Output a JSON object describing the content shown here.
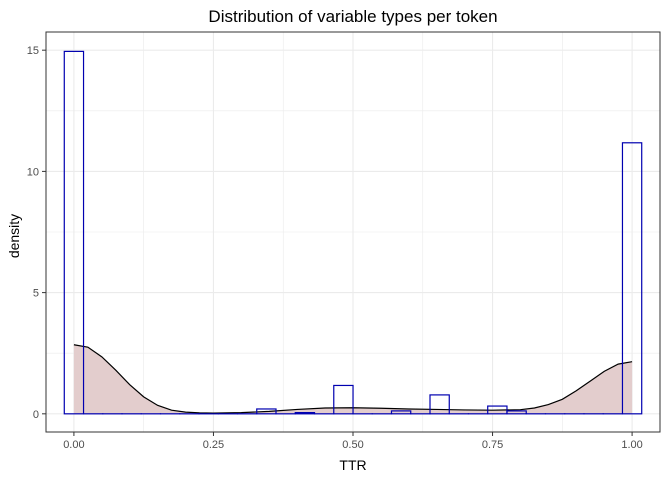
{
  "chart_data": {
    "type": "histogram",
    "title": "Distribution of variable types per token",
    "xlabel": "TTR",
    "ylabel": "density",
    "xlim": [
      -0.05,
      1.05
    ],
    "ylim": [
      -0.75,
      15.75
    ],
    "x_ticks": [
      0.0,
      0.25,
      0.5,
      0.75,
      1.0
    ],
    "x_tick_labels": [
      "0.00",
      "0.25",
      "0.50",
      "0.75",
      "1.00"
    ],
    "y_ticks": [
      0,
      5,
      10,
      15
    ],
    "y_tick_labels": [
      "0",
      "5",
      "10",
      "15"
    ],
    "grid": true,
    "bin_width": 0.0345,
    "bars": [
      {
        "x": 0.0,
        "density": 14.95
      },
      {
        "x": 0.0345,
        "density": 0
      },
      {
        "x": 0.069,
        "density": 0
      },
      {
        "x": 0.1034,
        "density": 0
      },
      {
        "x": 0.1379,
        "density": 0
      },
      {
        "x": 0.1724,
        "density": 0
      },
      {
        "x": 0.2069,
        "density": 0
      },
      {
        "x": 0.2414,
        "density": 0
      },
      {
        "x": 0.2759,
        "density": 0
      },
      {
        "x": 0.3103,
        "density": 0
      },
      {
        "x": 0.3448,
        "density": 0.2
      },
      {
        "x": 0.3793,
        "density": 0
      },
      {
        "x": 0.4138,
        "density": 0.05
      },
      {
        "x": 0.4483,
        "density": 0
      },
      {
        "x": 0.4828,
        "density": 1.17
      },
      {
        "x": 0.5172,
        "density": 0
      },
      {
        "x": 0.5517,
        "density": 0
      },
      {
        "x": 0.5862,
        "density": 0.12
      },
      {
        "x": 0.6207,
        "density": 0
      },
      {
        "x": 0.6552,
        "density": 0.78
      },
      {
        "x": 0.6897,
        "density": 0
      },
      {
        "x": 0.7241,
        "density": 0
      },
      {
        "x": 0.7586,
        "density": 0.32
      },
      {
        "x": 0.7931,
        "density": 0.12
      },
      {
        "x": 0.8276,
        "density": 0
      },
      {
        "x": 0.8621,
        "density": 0
      },
      {
        "x": 0.8966,
        "density": 0
      },
      {
        "x": 0.931,
        "density": 0
      },
      {
        "x": 0.9655,
        "density": 0
      },
      {
        "x": 1.0,
        "density": 11.18
      }
    ],
    "density_curve": {
      "x": [
        0.0,
        0.025,
        0.05,
        0.075,
        0.1,
        0.125,
        0.15,
        0.175,
        0.2,
        0.225,
        0.25,
        0.3,
        0.35,
        0.4,
        0.45,
        0.5,
        0.55,
        0.6,
        0.65,
        0.7,
        0.75,
        0.8,
        0.825,
        0.85,
        0.875,
        0.9,
        0.925,
        0.95,
        0.975,
        1.0
      ],
      "y": [
        2.85,
        2.75,
        2.35,
        1.8,
        1.2,
        0.7,
        0.35,
        0.15,
        0.07,
        0.04,
        0.03,
        0.05,
        0.1,
        0.18,
        0.24,
        0.25,
        0.23,
        0.2,
        0.18,
        0.16,
        0.15,
        0.17,
        0.24,
        0.38,
        0.6,
        0.95,
        1.35,
        1.75,
        2.05,
        2.15
      ]
    },
    "colors": {
      "bar_outline": "#0000b0",
      "curve_line": "#000000",
      "curve_fill": "#e3cdcd",
      "grid_major": "#ebebeb",
      "panel_border": "#333333"
    }
  }
}
